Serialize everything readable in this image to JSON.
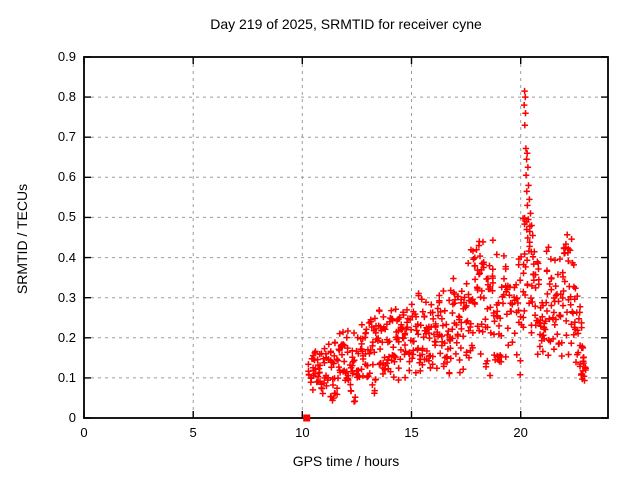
{
  "chart": {
    "title": "Day 219 of 2025, SRMTID for receiver cyne",
    "xlabel": "GPS time / hours",
    "ylabel": "SRMTID / TECUs"
  },
  "colors": {
    "marker": "#ff0000",
    "grid": "#9c9c9c",
    "border": "#000000",
    "background": "#ffffff"
  },
  "chart_data": {
    "type": "scatter",
    "title": "Day 219 of 2025, SRMTID for receiver cyne",
    "xlabel": "GPS time / hours",
    "ylabel": "SRMTID / TECUs",
    "xlim": [
      0,
      24
    ],
    "ylim": [
      0,
      0.9
    ],
    "xtick_values": [
      0,
      5,
      10,
      15,
      20
    ],
    "xtick_labels": [
      "0",
      "5",
      "10",
      "15",
      "20"
    ],
    "ytick_values": [
      0,
      0.1,
      0.2,
      0.3,
      0.4,
      0.5,
      0.6,
      0.7,
      0.8,
      0.9
    ],
    "ytick_labels": [
      "0",
      "0.1",
      "0.2",
      "0.3",
      "0.4",
      "0.5",
      "0.6",
      "0.7",
      "0.8",
      "0.9"
    ],
    "grid": true,
    "legend": "none",
    "marker": "plus",
    "marker_color": "#ff0000",
    "zero_marker": {
      "x": 10.2,
      "y": 0,
      "shape": "filled-square"
    },
    "spike_points": [
      [
        20.18,
        0.815
      ],
      [
        20.21,
        0.8
      ],
      [
        20.16,
        0.78
      ],
      [
        20.22,
        0.76
      ],
      [
        20.19,
        0.73
      ],
      [
        20.24,
        0.672
      ],
      [
        20.3,
        0.66
      ],
      [
        20.27,
        0.645
      ],
      [
        20.33,
        0.625
      ],
      [
        20.25,
        0.605
      ],
      [
        20.36,
        0.58
      ],
      [
        20.28,
        0.565
      ],
      [
        20.4,
        0.545
      ],
      [
        20.31,
        0.53
      ],
      [
        20.45,
        0.51
      ],
      [
        20.35,
        0.495
      ],
      [
        20.5,
        0.48
      ],
      [
        20.42,
        0.465
      ],
      [
        20.55,
        0.455
      ]
    ],
    "density_columns": {
      "format": [
        "hour",
        "ymin",
        "ymax",
        "count"
      ],
      "data": [
        [
          10.3,
          0.09,
          0.14,
          4
        ],
        [
          10.4,
          0.08,
          0.15,
          5
        ],
        [
          10.5,
          0.07,
          0.16,
          6
        ],
        [
          10.6,
          0.08,
          0.17,
          5
        ],
        [
          10.7,
          0.07,
          0.15,
          5
        ],
        [
          10.8,
          0.08,
          0.16,
          6
        ],
        [
          10.9,
          0.06,
          0.17,
          5
        ],
        [
          11.0,
          0.08,
          0.18,
          5
        ],
        [
          11.1,
          0.07,
          0.18,
          5
        ],
        [
          11.2,
          0.08,
          0.19,
          5
        ],
        [
          11.3,
          0.05,
          0.17,
          6
        ],
        [
          11.4,
          0.04,
          0.18,
          6
        ],
        [
          11.5,
          0.06,
          0.2,
          6
        ],
        [
          11.6,
          0.05,
          0.21,
          5
        ],
        [
          11.7,
          0.08,
          0.22,
          6
        ],
        [
          11.8,
          0.07,
          0.2,
          5
        ],
        [
          11.9,
          0.06,
          0.23,
          6
        ],
        [
          12.0,
          0.08,
          0.22,
          5
        ],
        [
          12.1,
          0.09,
          0.24,
          6
        ],
        [
          12.2,
          0.05,
          0.22,
          6
        ],
        [
          12.3,
          0.08,
          0.25,
          6
        ],
        [
          12.4,
          0.04,
          0.23,
          5
        ],
        [
          12.5,
          0.1,
          0.26,
          6
        ],
        [
          12.6,
          0.09,
          0.22,
          5
        ],
        [
          12.7,
          0.11,
          0.25,
          6
        ],
        [
          12.8,
          0.08,
          0.24,
          5
        ],
        [
          12.9,
          0.1,
          0.26,
          6
        ],
        [
          13.0,
          0.09,
          0.23,
          5
        ],
        [
          13.1,
          0.1,
          0.26,
          6
        ],
        [
          13.2,
          0.08,
          0.24,
          5
        ],
        [
          13.3,
          0.06,
          0.27,
          6
        ],
        [
          13.4,
          0.09,
          0.25,
          5
        ],
        [
          13.5,
          0.07,
          0.28,
          6
        ],
        [
          13.6,
          0.1,
          0.24,
          5
        ],
        [
          13.7,
          0.11,
          0.27,
          6
        ],
        [
          13.8,
          0.09,
          0.25,
          5
        ],
        [
          13.9,
          0.12,
          0.28,
          6
        ],
        [
          14.0,
          0.1,
          0.26,
          5
        ],
        [
          14.1,
          0.11,
          0.27,
          6
        ],
        [
          14.2,
          0.09,
          0.25,
          5
        ],
        [
          14.3,
          0.12,
          0.28,
          6
        ],
        [
          14.4,
          0.06,
          0.26,
          6
        ],
        [
          14.5,
          0.07,
          0.29,
          6
        ],
        [
          14.6,
          0.13,
          0.27,
          5
        ],
        [
          14.7,
          0.06,
          0.3,
          6
        ],
        [
          14.8,
          0.12,
          0.28,
          5
        ],
        [
          14.9,
          0.11,
          0.31,
          6
        ],
        [
          15.0,
          0.13,
          0.29,
          5
        ],
        [
          15.1,
          0.12,
          0.3,
          6
        ],
        [
          15.2,
          0.1,
          0.28,
          5
        ],
        [
          15.3,
          0.13,
          0.32,
          6
        ],
        [
          15.4,
          0.11,
          0.29,
          5
        ],
        [
          15.5,
          0.12,
          0.3,
          6
        ],
        [
          15.6,
          0.14,
          0.28,
          5
        ],
        [
          15.7,
          0.11,
          0.31,
          6
        ],
        [
          15.8,
          0.13,
          0.29,
          5
        ],
        [
          15.9,
          0.1,
          0.3,
          6
        ],
        [
          16.0,
          0.12,
          0.28,
          5
        ],
        [
          16.1,
          0.13,
          0.31,
          6
        ],
        [
          16.2,
          0.11,
          0.29,
          5
        ],
        [
          16.3,
          0.12,
          0.32,
          6
        ],
        [
          16.4,
          0.14,
          0.3,
          5
        ],
        [
          16.5,
          0.11,
          0.33,
          6
        ],
        [
          16.6,
          0.13,
          0.29,
          5
        ],
        [
          16.7,
          0.1,
          0.31,
          6
        ],
        [
          16.8,
          0.12,
          0.34,
          5
        ],
        [
          16.9,
          0.14,
          0.35,
          6
        ],
        [
          17.0,
          0.12,
          0.32,
          5
        ],
        [
          17.1,
          0.13,
          0.33,
          6
        ],
        [
          17.2,
          0.11,
          0.3,
          5
        ],
        [
          17.3,
          0.14,
          0.34,
          6
        ],
        [
          17.4,
          0.12,
          0.36,
          5
        ],
        [
          17.5,
          0.15,
          0.38,
          6
        ],
        [
          17.6,
          0.13,
          0.4,
          6
        ],
        [
          17.7,
          0.16,
          0.42,
          6
        ],
        [
          17.8,
          0.14,
          0.44,
          6
        ],
        [
          17.9,
          0.17,
          0.43,
          6
        ],
        [
          18.0,
          0.15,
          0.45,
          6
        ],
        [
          18.1,
          0.16,
          0.44,
          6
        ],
        [
          18.2,
          0.12,
          0.4,
          6
        ],
        [
          18.3,
          0.15,
          0.45,
          6
        ],
        [
          18.4,
          0.11,
          0.38,
          5
        ],
        [
          18.5,
          0.14,
          0.42,
          6
        ],
        [
          18.6,
          0.1,
          0.44,
          6
        ],
        [
          18.7,
          0.13,
          0.46,
          6
        ],
        [
          18.8,
          0.11,
          0.43,
          6
        ],
        [
          18.9,
          0.15,
          0.47,
          6
        ],
        [
          19.0,
          0.12,
          0.45,
          6
        ],
        [
          19.1,
          0.14,
          0.44,
          6
        ],
        [
          19.2,
          0.16,
          0.42,
          5
        ],
        [
          19.3,
          0.13,
          0.38,
          5
        ],
        [
          19.4,
          0.15,
          0.35,
          5
        ],
        [
          19.5,
          0.17,
          0.33,
          4
        ],
        [
          19.6,
          0.14,
          0.31,
          4
        ],
        [
          19.7,
          0.16,
          0.34,
          4
        ],
        [
          19.8,
          0.15,
          0.38,
          5
        ],
        [
          19.9,
          0.12,
          0.4,
          5
        ],
        [
          20.0,
          0.1,
          0.42,
          6
        ],
        [
          20.1,
          0.18,
          0.5,
          6
        ],
        [
          20.2,
          0.25,
          0.52,
          6
        ],
        [
          20.3,
          0.28,
          0.5,
          6
        ],
        [
          20.4,
          0.25,
          0.48,
          5
        ],
        [
          20.5,
          0.2,
          0.45,
          6
        ],
        [
          20.6,
          0.18,
          0.42,
          6
        ],
        [
          20.7,
          0.17,
          0.38,
          6
        ],
        [
          20.8,
          0.15,
          0.4,
          7
        ],
        [
          20.9,
          0.17,
          0.36,
          6
        ],
        [
          21.0,
          0.14,
          0.38,
          7
        ],
        [
          21.1,
          0.16,
          0.4,
          6
        ],
        [
          21.2,
          0.18,
          0.42,
          6
        ],
        [
          21.3,
          0.15,
          0.44,
          6
        ],
        [
          21.4,
          0.17,
          0.45,
          6
        ],
        [
          21.5,
          0.16,
          0.42,
          6
        ],
        [
          21.6,
          0.18,
          0.4,
          6
        ],
        [
          21.7,
          0.15,
          0.38,
          5
        ],
        [
          21.8,
          0.17,
          0.42,
          6
        ],
        [
          21.9,
          0.14,
          0.4,
          6
        ],
        [
          22.0,
          0.16,
          0.44,
          6
        ],
        [
          22.1,
          0.18,
          0.46,
          6
        ],
        [
          22.2,
          0.15,
          0.43,
          6
        ],
        [
          22.3,
          0.17,
          0.45,
          6
        ],
        [
          22.4,
          0.14,
          0.4,
          6
        ],
        [
          22.5,
          0.12,
          0.36,
          6
        ],
        [
          22.6,
          0.11,
          0.32,
          6
        ],
        [
          22.7,
          0.1,
          0.28,
          6
        ],
        [
          22.8,
          0.09,
          0.24,
          6
        ],
        [
          22.85,
          0.09,
          0.2,
          5
        ],
        [
          22.9,
          0.08,
          0.16,
          5
        ],
        [
          22.95,
          0.1,
          0.14,
          3
        ]
      ]
    }
  }
}
